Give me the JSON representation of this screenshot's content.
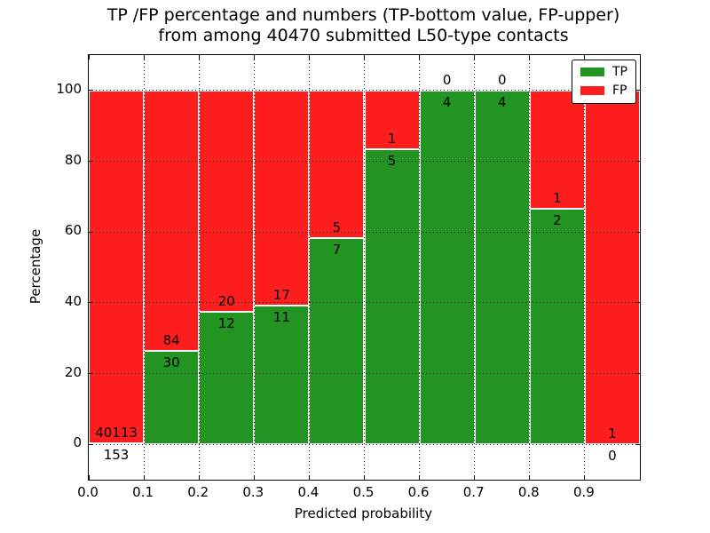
{
  "title": {
    "line1": "TP /FP percentage and numbers (TP-bottom value, FP-upper)",
    "line2": "from among 40470 submitted L50-type contacts"
  },
  "axes": {
    "xlabel": "Predicted probability",
    "ylabel": "Percentage",
    "x_tick_labels": [
      "0.0",
      "0.1",
      "0.2",
      "0.3",
      "0.4",
      "0.5",
      "0.6",
      "0.7",
      "0.8",
      "0.9"
    ],
    "y_ticks": [
      0,
      20,
      40,
      60,
      80,
      100
    ],
    "xlim": [
      0.0,
      1.0
    ],
    "ylim": [
      -10,
      110
    ],
    "grid": true
  },
  "legend": {
    "position": "upper right",
    "items": [
      {
        "label": "TP",
        "color": "#229422"
      },
      {
        "label": "FP",
        "color": "#ff1e1e"
      }
    ]
  },
  "colors": {
    "tp": "#229422",
    "fp": "#ff1e1e",
    "bar_edge": "#ffffff",
    "grid": "#000000",
    "background": "#ffffff"
  },
  "chart_data": {
    "type": "bar",
    "stacked": true,
    "normalized": "percent_of_bin",
    "title": "TP /FP percentage and numbers (TP-bottom value, FP-upper) from among 40470 submitted L50-type contacts",
    "xlabel": "Predicted probability",
    "ylabel": "Percentage",
    "xlim": [
      0.0,
      1.0
    ],
    "ylim": [
      -10,
      110
    ],
    "bin_width": 0.1,
    "total_submitted": 40470,
    "legend_position": "upper right",
    "grid": true,
    "bins": [
      {
        "range": [
          0.0,
          0.1
        ],
        "tp": 153,
        "fp": 40113,
        "tp_percent": 0.38
      },
      {
        "range": [
          0.1,
          0.2
        ],
        "tp": 30,
        "fp": 84,
        "tp_percent": 26.32
      },
      {
        "range": [
          0.2,
          0.3
        ],
        "tp": 12,
        "fp": 20,
        "tp_percent": 37.5
      },
      {
        "range": [
          0.3,
          0.4
        ],
        "tp": 11,
        "fp": 17,
        "tp_percent": 39.29
      },
      {
        "range": [
          0.4,
          0.5
        ],
        "tp": 7,
        "fp": 5,
        "tp_percent": 58.33
      },
      {
        "range": [
          0.5,
          0.6
        ],
        "tp": 5,
        "fp": 1,
        "tp_percent": 83.33
      },
      {
        "range": [
          0.6,
          0.7
        ],
        "tp": 4,
        "fp": 0,
        "tp_percent": 100.0
      },
      {
        "range": [
          0.7,
          0.8
        ],
        "tp": 4,
        "fp": 0,
        "tp_percent": 100.0
      },
      {
        "range": [
          0.8,
          0.9
        ],
        "tp": 2,
        "fp": 1,
        "tp_percent": 66.67
      },
      {
        "range": [
          0.9,
          1.0
        ],
        "tp": 0,
        "fp": 1,
        "tp_percent": 0.0
      }
    ]
  }
}
